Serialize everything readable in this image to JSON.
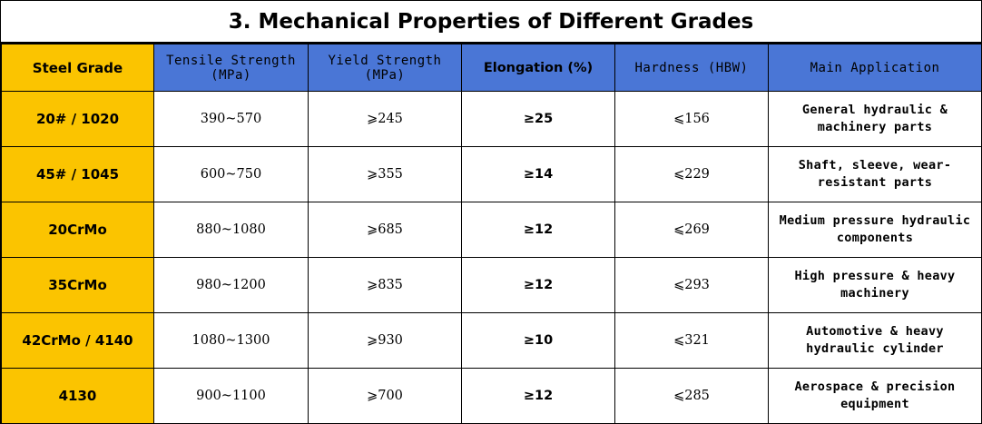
{
  "title": "3. Mechanical Properties of Different Grades",
  "headers": {
    "grade": "Steel Grade",
    "tensile": "Tensile Strength\n(MPa)",
    "yield": "Yield Strength\n(MPa)",
    "elongation": "Elongation (%)",
    "hardness": "Hardness (HBW)",
    "application": "Main Application"
  },
  "rows": [
    {
      "grade": "20# / 1020",
      "tensile": "390~570",
      "yield": "⩾245",
      "elongation": "≥25",
      "hardness": "⩽156",
      "application": "General hydraulic &\nmachinery parts"
    },
    {
      "grade": "45# / 1045",
      "tensile": "600~750",
      "yield": "⩾355",
      "elongation": "≥14",
      "hardness": "⩽229",
      "application": "Shaft, sleeve, wear-\nresistant parts"
    },
    {
      "grade": "20CrMo",
      "tensile": "880~1080",
      "yield": "⩾685",
      "elongation": "≥12",
      "hardness": "⩽269",
      "application": "Medium pressure hydraulic\ncomponents"
    },
    {
      "grade": "35CrMo",
      "tensile": "980~1200",
      "yield": "⩾835",
      "elongation": "≥12",
      "hardness": "⩽293",
      "application": "High pressure & heavy\nmachinery"
    },
    {
      "grade": "42CrMo / 4140",
      "tensile": "1080~1300",
      "yield": "⩾930",
      "elongation": "≥10",
      "hardness": "⩽321",
      "application": "Automotive & heavy\nhydraulic cylinder"
    },
    {
      "grade": "4130",
      "tensile": "900~1100",
      "yield": "⩾700",
      "elongation": "≥12",
      "hardness": "⩽285",
      "application": "Aerospace & precision\nequipment"
    }
  ],
  "colors": {
    "header_blue": "#4a76d6",
    "grade_yellow": "#fbc400"
  }
}
